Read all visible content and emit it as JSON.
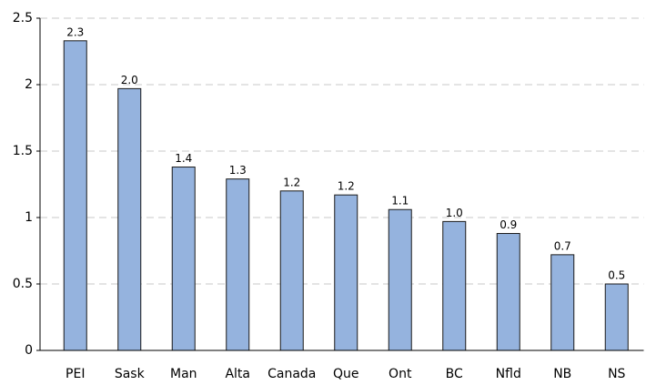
{
  "chart_data": {
    "type": "bar",
    "categories": [
      "PEI",
      "Sask",
      "Man",
      "Alta",
      "Canada",
      "Que",
      "Ont",
      "BC",
      "Nfld",
      "NB",
      "NS"
    ],
    "values": [
      2.33,
      1.97,
      1.38,
      1.29,
      1.2,
      1.17,
      1.06,
      0.97,
      0.88,
      0.72,
      0.5
    ],
    "value_labels": [
      "2.3",
      "2.0",
      "1.4",
      "1.3",
      "1.2",
      "1.2",
      "1.1",
      "1.0",
      "0.9",
      "0.7",
      "0.5"
    ],
    "color": "#95b3de",
    "ylim": [
      0,
      2.5
    ],
    "yticks": [
      0,
      0.5,
      1,
      1.5,
      2,
      2.5
    ],
    "grid": true
  }
}
